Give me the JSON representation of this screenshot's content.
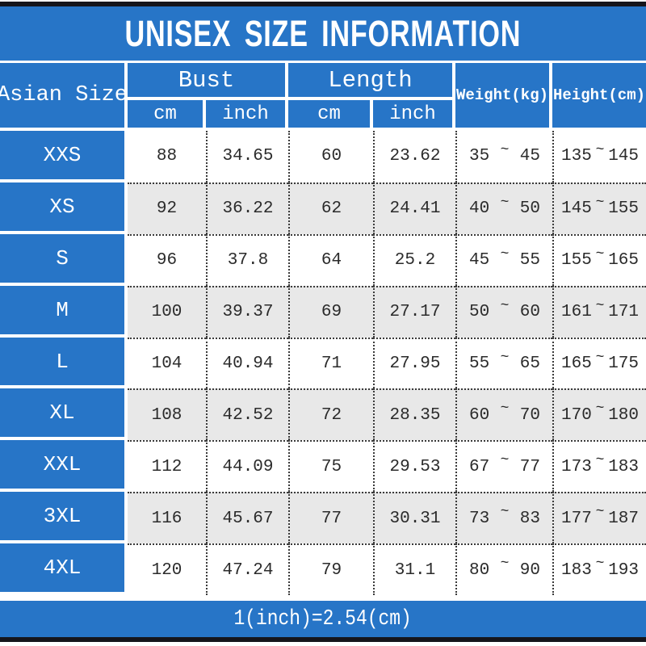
{
  "colors": {
    "accent_blue": "#2775c7",
    "row_alt_gray": "#e8e8e8",
    "edge_bar_black": "#15151b"
  },
  "chart_data": {
    "type": "table",
    "title": "UNISEX SIZE INFORMATION",
    "header": {
      "size_column": "Asian Size",
      "bust": {
        "label": "Bust",
        "units": [
          "cm",
          "inch"
        ]
      },
      "length": {
        "label": "Length",
        "units": [
          "cm",
          "inch"
        ]
      },
      "weight_label": "Weight(kg)",
      "height_label": "Height(cm)"
    },
    "tilde_symbol": "~",
    "rows": [
      {
        "size": "XXS",
        "bust_cm": "88",
        "bust_inch": "34.65",
        "length_cm": "60",
        "length_inch": "23.62",
        "weight_min": "35",
        "weight_max": "45",
        "height_min": "135",
        "height_max": "145"
      },
      {
        "size": "XS",
        "bust_cm": "92",
        "bust_inch": "36.22",
        "length_cm": "62",
        "length_inch": "24.41",
        "weight_min": "40",
        "weight_max": "50",
        "height_min": "145",
        "height_max": "155"
      },
      {
        "size": "S",
        "bust_cm": "96",
        "bust_inch": "37.8",
        "length_cm": "64",
        "length_inch": "25.2",
        "weight_min": "45",
        "weight_max": "55",
        "height_min": "155",
        "height_max": "165"
      },
      {
        "size": "M",
        "bust_cm": "100",
        "bust_inch": "39.37",
        "length_cm": "69",
        "length_inch": "27.17",
        "weight_min": "50",
        "weight_max": "60",
        "height_min": "161",
        "height_max": "171"
      },
      {
        "size": "L",
        "bust_cm": "104",
        "bust_inch": "40.94",
        "length_cm": "71",
        "length_inch": "27.95",
        "weight_min": "55",
        "weight_max": "65",
        "height_min": "165",
        "height_max": "175"
      },
      {
        "size": "XL",
        "bust_cm": "108",
        "bust_inch": "42.52",
        "length_cm": "72",
        "length_inch": "28.35",
        "weight_min": "60",
        "weight_max": "70",
        "height_min": "170",
        "height_max": "180"
      },
      {
        "size": "XXL",
        "bust_cm": "112",
        "bust_inch": "44.09",
        "length_cm": "75",
        "length_inch": "29.53",
        "weight_min": "67",
        "weight_max": "77",
        "height_min": "173",
        "height_max": "183"
      },
      {
        "size": "3XL",
        "bust_cm": "116",
        "bust_inch": "45.67",
        "length_cm": "77",
        "length_inch": "30.31",
        "weight_min": "73",
        "weight_max": "83",
        "height_min": "177",
        "height_max": "187"
      },
      {
        "size": "4XL",
        "bust_cm": "120",
        "bust_inch": "47.24",
        "length_cm": "79",
        "length_inch": "31.1",
        "weight_min": "80",
        "weight_max": "90",
        "height_min": "183",
        "height_max": "193"
      }
    ],
    "footer_note": "1(inch)=2.54(cm)"
  }
}
